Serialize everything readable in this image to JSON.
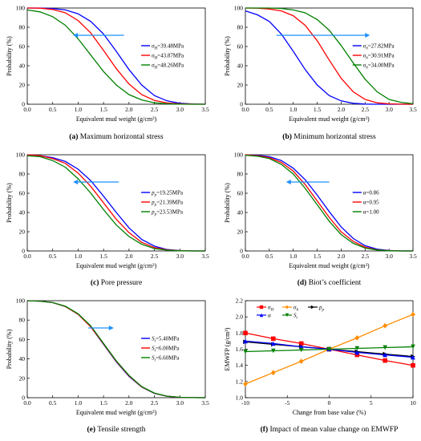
{
  "figure": {
    "captions": [
      {
        "letter": "(a)",
        "text": "Maximum horizontal stress"
      },
      {
        "letter": "(b)",
        "text": "Minimum horizontal stress"
      },
      {
        "letter": "(c)",
        "text": "Pore pressure"
      },
      {
        "letter": "(d)",
        "text": "Biot’s coefficient"
      },
      {
        "letter": "(e)",
        "text": "Tensile strength"
      },
      {
        "letter": "(f)",
        "text": "Impact of mean value change on EMWFP"
      }
    ]
  },
  "chart_data": [
    {
      "type": "line",
      "xlabel": "Equivalent mud weight (g/cm³)",
      "ylabel": "Probability (%)",
      "xlim": [
        0.0,
        3.5
      ],
      "ylim": [
        0,
        100
      ],
      "xticks": [
        "0.0",
        "0.5",
        "1.0",
        "1.5",
        "2.0",
        "2.5",
        "3.0",
        "3.5"
      ],
      "yticks": [
        "0",
        "20",
        "40",
        "60",
        "80",
        "100"
      ],
      "arrow": "left",
      "series": [
        {
          "name": "σH=39.48MPa",
          "color": "#0000ff",
          "x": [
            0,
            0.25,
            0.5,
            0.75,
            1.0,
            1.25,
            1.5,
            1.75,
            2.0,
            2.25,
            2.5,
            2.75,
            3.0,
            3.25,
            3.5
          ],
          "y": [
            100,
            100,
            99.5,
            98,
            94,
            86,
            73,
            55,
            36,
            20,
            9,
            3.5,
            1,
            0.3,
            0
          ]
        },
        {
          "name": "σH=43.87MPa",
          "color": "#ff0000",
          "x": [
            0,
            0.25,
            0.5,
            0.75,
            1.0,
            1.25,
            1.5,
            1.75,
            2.0,
            2.25,
            2.5,
            2.75,
            3.0,
            3.25,
            3.5
          ],
          "y": [
            100,
            99.8,
            98.5,
            95,
            87,
            74,
            56,
            37,
            21,
            10,
            4,
            1.3,
            0.4,
            0.1,
            0
          ]
        },
        {
          "name": "σH=48.26MPa",
          "color": "#008000",
          "x": [
            0,
            0.25,
            0.5,
            0.75,
            1.0,
            1.25,
            1.5,
            1.75,
            2.0,
            2.25,
            2.5,
            2.75,
            3.0,
            3.25,
            3.5
          ],
          "y": [
            98,
            96,
            91,
            82,
            68,
            51,
            34,
            20,
            10,
            4.5,
            1.5,
            0.5,
            0.1,
            0,
            0
          ]
        }
      ]
    },
    {
      "type": "line",
      "xlabel": "Equivalent mud weight (g/cm³)",
      "ylabel": "Probability (%)",
      "xlim": [
        0.0,
        3.5
      ],
      "ylim": [
        0,
        100
      ],
      "xticks": [
        "0.0",
        "0.5",
        "1.0",
        "1.5",
        "2.0",
        "2.5",
        "3.0",
        "3.5"
      ],
      "yticks": [
        "0",
        "20",
        "40",
        "60",
        "80",
        "100"
      ],
      "arrow": "right",
      "series": [
        {
          "name": "σh=27.82MPa",
          "color": "#0000ff",
          "x": [
            0,
            0.25,
            0.5,
            0.75,
            1.0,
            1.25,
            1.5,
            1.75,
            2.0,
            2.25,
            2.5,
            2.75,
            3.0,
            3.25,
            3.5
          ],
          "y": [
            97,
            93,
            86,
            73,
            55,
            36,
            20,
            9,
            3.5,
            1,
            0.2,
            0,
            0,
            0,
            0
          ]
        },
        {
          "name": "σh=30.91MPa",
          "color": "#ff0000",
          "x": [
            0,
            0.25,
            0.5,
            0.75,
            1.0,
            1.25,
            1.5,
            1.75,
            2.0,
            2.25,
            2.5,
            2.75,
            3.0,
            3.25,
            3.5
          ],
          "y": [
            100,
            99.8,
            99,
            97,
            92,
            82,
            66,
            46,
            27,
            13,
            5,
            1.5,
            0.4,
            0.1,
            0
          ]
        },
        {
          "name": "σh=34.00MPa",
          "color": "#008000",
          "x": [
            0,
            0.25,
            0.5,
            0.75,
            1.0,
            1.25,
            1.5,
            1.75,
            2.0,
            2.25,
            2.5,
            2.75,
            3.0,
            3.25,
            3.5
          ],
          "y": [
            100,
            100,
            100,
            99.5,
            98,
            95,
            88,
            77,
            61,
            43,
            26,
            13,
            5,
            2,
            0.5
          ]
        }
      ]
    },
    {
      "type": "line",
      "xlabel": "Equivalent mud weight (g/cm³)",
      "ylabel": "Probability (%)",
      "xlim": [
        0.0,
        3.5
      ],
      "ylim": [
        0,
        100
      ],
      "xticks": [
        "0.0",
        "0.5",
        "1.0",
        "1.5",
        "2.0",
        "2.5",
        "3.0",
        "3.5"
      ],
      "yticks": [
        "0",
        "20",
        "40",
        "60",
        "80",
        "100"
      ],
      "arrow": "left",
      "series": [
        {
          "name": "pp=19.25MPa",
          "color": "#0000ff",
          "x": [
            0,
            0.25,
            0.5,
            0.75,
            1.0,
            1.25,
            1.5,
            1.75,
            2.0,
            2.25,
            2.5,
            2.75,
            3.0,
            3.25,
            3.5
          ],
          "y": [
            100,
            99,
            97,
            93,
            85,
            73,
            57,
            40,
            24,
            12,
            5,
            1.5,
            0.4,
            0.1,
            0
          ]
        },
        {
          "name": "pp=21.39MPa",
          "color": "#ff0000",
          "x": [
            0,
            0.25,
            0.5,
            0.75,
            1.0,
            1.25,
            1.5,
            1.75,
            2.0,
            2.25,
            2.5,
            2.75,
            3.0,
            3.25,
            3.5
          ],
          "y": [
            100,
            99,
            96,
            91,
            81,
            67,
            50,
            33,
            19,
            9,
            3.5,
            1.1,
            0.3,
            0,
            0
          ]
        },
        {
          "name": "pp=23.53MPa",
          "color": "#008000",
          "x": [
            0,
            0.25,
            0.5,
            0.75,
            1.0,
            1.25,
            1.5,
            1.75,
            2.0,
            2.25,
            2.5,
            2.75,
            3.0,
            3.25,
            3.5
          ],
          "y": [
            99,
            98,
            94,
            87,
            75,
            60,
            43,
            27,
            15,
            7,
            2.5,
            0.8,
            0.2,
            0,
            0
          ]
        }
      ]
    },
    {
      "type": "line",
      "xlabel": "Equivalent mud weight (g/cm³)",
      "ylabel": "Probability (%)",
      "xlim": [
        0.0,
        3.5
      ],
      "ylim": [
        0,
        100
      ],
      "xticks": [
        "0.0",
        "0.5",
        "1.0",
        "1.5",
        "2.0",
        "2.5",
        "3.0",
        "3.5"
      ],
      "yticks": [
        "0",
        "20",
        "40",
        "60",
        "80",
        "100"
      ],
      "arrow": "left",
      "series": [
        {
          "name": "α=0.86",
          "color": "#0000ff",
          "x": [
            0,
            0.25,
            0.5,
            0.75,
            1.0,
            1.25,
            1.5,
            1.75,
            2.0,
            2.25,
            2.5,
            2.75,
            3.0,
            3.25,
            3.5
          ],
          "y": [
            100,
            99.5,
            98,
            94,
            86,
            74,
            58,
            41,
            25,
            13,
            5.5,
            1.8,
            0.5,
            0.1,
            0
          ]
        },
        {
          "name": "α=0.95",
          "color": "#ff0000",
          "x": [
            0,
            0.25,
            0.5,
            0.75,
            1.0,
            1.25,
            1.5,
            1.75,
            2.0,
            2.25,
            2.5,
            2.75,
            3.0,
            3.25,
            3.5
          ],
          "y": [
            100,
            99,
            97,
            92,
            83,
            69,
            52,
            35,
            20,
            10,
            4,
            1.2,
            0.3,
            0,
            0
          ]
        },
        {
          "name": "α=1.00",
          "color": "#008000",
          "x": [
            0,
            0.25,
            0.5,
            0.75,
            1.0,
            1.25,
            1.5,
            1.75,
            2.0,
            2.25,
            2.5,
            2.75,
            3.0,
            3.25,
            3.5
          ],
          "y": [
            99.5,
            98.5,
            96,
            90,
            80,
            65,
            48,
            31,
            17,
            8,
            3,
            1,
            0.2,
            0,
            0
          ]
        }
      ]
    },
    {
      "type": "line",
      "xlabel": "Equivalent mud weight (g/cm³)",
      "ylabel": "Probability (%)",
      "xlim": [
        0.0,
        3.5
      ],
      "ylim": [
        0,
        100
      ],
      "xticks": [
        "0.0",
        "0.5",
        "1.0",
        "1.5",
        "2.0",
        "2.5",
        "3.0",
        "3.5"
      ],
      "yticks": [
        "0",
        "20",
        "40",
        "60",
        "80",
        "100"
      ],
      "arrow": "right",
      "series": [
        {
          "name": "St=5.40MPa",
          "color": "#0000ff",
          "x": [
            0,
            0.25,
            0.5,
            0.75,
            1.0,
            1.25,
            1.5,
            1.75,
            2.0,
            2.25,
            2.5,
            2.75,
            3.0,
            3.25,
            3.5
          ],
          "y": [
            100,
            99.5,
            98,
            94,
            86,
            73,
            55,
            37,
            22,
            11,
            4.5,
            1.5,
            0.4,
            0.1,
            0
          ]
        },
        {
          "name": "St=6.00MPa",
          "color": "#ff0000",
          "x": [
            0,
            0.25,
            0.5,
            0.75,
            1.0,
            1.25,
            1.5,
            1.75,
            2.0,
            2.25,
            2.5,
            2.75,
            3.0,
            3.25,
            3.5
          ],
          "y": [
            100,
            99.5,
            98,
            94,
            86,
            73,
            55.5,
            37.5,
            22.5,
            11.2,
            4.6,
            1.5,
            0.4,
            0.1,
            0
          ]
        },
        {
          "name": "St=6.60MPa",
          "color": "#008000",
          "x": [
            0,
            0.25,
            0.5,
            0.75,
            1.0,
            1.25,
            1.5,
            1.75,
            2.0,
            2.25,
            2.5,
            2.75,
            3.0,
            3.25,
            3.5
          ],
          "y": [
            100,
            99.5,
            98,
            94.3,
            86.5,
            74,
            56,
            38,
            23,
            11.5,
            4.8,
            1.6,
            0.4,
            0.1,
            0
          ]
        }
      ]
    },
    {
      "type": "line",
      "xlabel": "Change from base value (%)",
      "ylabel": "EMWFP (g/cm³)",
      "xlim": [
        -10,
        10
      ],
      "ylim": [
        1.0,
        2.2
      ],
      "xticks": [
        "-10",
        "-5",
        "0",
        "5",
        "10"
      ],
      "yticks": [
        "1.0",
        "1.2",
        "1.4",
        "1.6",
        "1.8",
        "2.0",
        "2.2"
      ],
      "x": [
        -10,
        -6.67,
        -3.33,
        0,
        3.33,
        6.67,
        10
      ],
      "series": [
        {
          "name": "σH",
          "color": "#ff0000",
          "marker": "square",
          "values": [
            1.8,
            1.73,
            1.67,
            1.6,
            1.53,
            1.46,
            1.4
          ]
        },
        {
          "name": "σh",
          "color": "#ff8c00",
          "marker": "diamond",
          "values": [
            1.17,
            1.31,
            1.45,
            1.6,
            1.74,
            1.89,
            2.03
          ]
        },
        {
          "name": "pp",
          "color": "#000000",
          "marker": "triangle-right",
          "values": [
            1.69,
            1.66,
            1.63,
            1.6,
            1.57,
            1.54,
            1.51
          ]
        },
        {
          "name": "α",
          "color": "#0000ff",
          "marker": "triangle-up",
          "values": [
            1.7,
            1.67,
            1.63,
            1.6,
            1.56,
            1.53,
            1.5
          ]
        },
        {
          "name": "St",
          "color": "#008000",
          "marker": "triangle-down",
          "values": [
            1.57,
            1.58,
            1.59,
            1.6,
            1.61,
            1.62,
            1.63
          ]
        }
      ]
    }
  ]
}
